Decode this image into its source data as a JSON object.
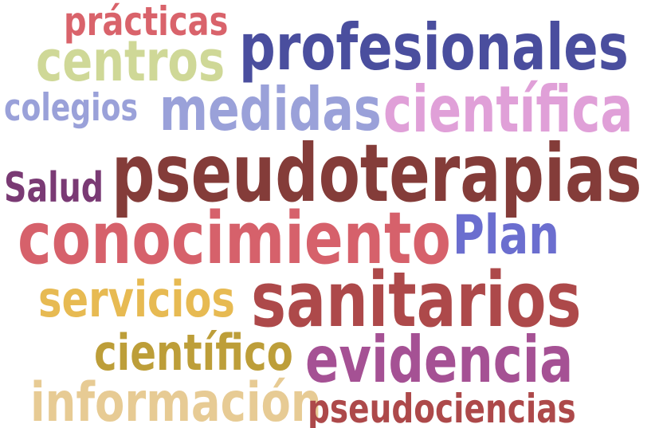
{
  "words": [
    {
      "id": "practicas",
      "text": "prácticas",
      "color": "#d9636b"
    },
    {
      "id": "profesionales",
      "text": "profesionales",
      "color": "#4a4e9e"
    },
    {
      "id": "centros",
      "text": "centros",
      "color": "#cfd897"
    },
    {
      "id": "colegios",
      "text": "colegios",
      "color": "#9aa1d9"
    },
    {
      "id": "medidas",
      "text": "medidas",
      "color": "#9aa1d9"
    },
    {
      "id": "cientifica",
      "text": "científica",
      "color": "#e0a0d8"
    },
    {
      "id": "salud",
      "text": "Salud",
      "color": "#7a3a74"
    },
    {
      "id": "pseudoterapias",
      "text": "pseudoterapias",
      "color": "#843c39"
    },
    {
      "id": "conocimiento",
      "text": "conocimiento",
      "color": "#d6616b"
    },
    {
      "id": "plan",
      "text": "Plan",
      "color": "#6b6ecf"
    },
    {
      "id": "servicios",
      "text": "servicios",
      "color": "#e7ba52"
    },
    {
      "id": "sanitarios",
      "text": "sanitarios",
      "color": "#ad494a"
    },
    {
      "id": "cientifico",
      "text": "científico",
      "color": "#bd9e39"
    },
    {
      "id": "evidencia",
      "text": "evidencia",
      "color": "#a55194"
    },
    {
      "id": "informacion",
      "text": "información",
      "color": "#e7cb94"
    },
    {
      "id": "pseudociencias",
      "text": "pseudociencias",
      "color": "#ad494a"
    }
  ]
}
